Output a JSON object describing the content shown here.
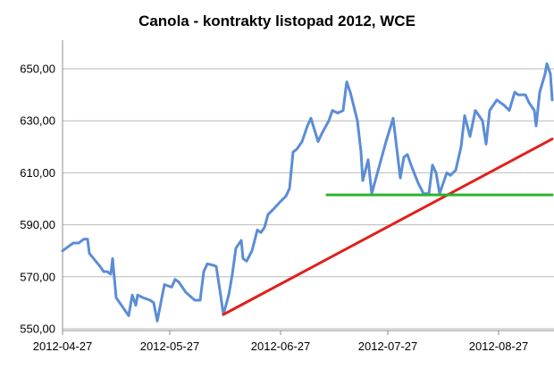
{
  "chart_data": {
    "type": "line",
    "title": "Canola - kontrakty listopad 2012, WCE",
    "xlabel": "",
    "ylabel": "",
    "ylim": [
      550,
      655
    ],
    "yticks": [
      "550,00",
      "570,00",
      "590,00",
      "610,00",
      "630,00",
      "650,00"
    ],
    "ytick_values": [
      550,
      570,
      590,
      610,
      630,
      650
    ],
    "xticks": [
      "2012-04-27",
      "2012-05-27",
      "2012-06-27",
      "2012-07-27",
      "2012-08-27"
    ],
    "xtick_days": [
      0,
      30,
      61,
      91,
      122
    ],
    "grid": "horizontal",
    "series": [
      {
        "color": "#5b8dd6",
        "points": [
          [
            0,
            580
          ],
          [
            1.5,
            581.5
          ],
          [
            3,
            583
          ],
          [
            4.5,
            583
          ],
          [
            6,
            584.5
          ],
          [
            7,
            584.5
          ],
          [
            7.5,
            579
          ],
          [
            9,
            576.5
          ],
          [
            10.5,
            574
          ],
          [
            11.5,
            572
          ],
          [
            12.5,
            572
          ],
          [
            13.5,
            571
          ],
          [
            14,
            577
          ],
          [
            15,
            562
          ],
          [
            16.5,
            559
          ],
          [
            18.5,
            555
          ],
          [
            19.5,
            563
          ],
          [
            20.5,
            559
          ],
          [
            21,
            563
          ],
          [
            22.5,
            562
          ],
          [
            24.5,
            561
          ],
          [
            25.5,
            560
          ],
          [
            26.5,
            553
          ],
          [
            28.5,
            567
          ],
          [
            30.5,
            566
          ],
          [
            31.5,
            569
          ],
          [
            32.5,
            568
          ],
          [
            33.5,
            566
          ],
          [
            34.5,
            564
          ],
          [
            37,
            561
          ],
          [
            38.5,
            561
          ],
          [
            39.5,
            572
          ],
          [
            40.5,
            575
          ],
          [
            42,
            574.5
          ],
          [
            43,
            574
          ],
          [
            44,
            565
          ],
          [
            45,
            555.5
          ],
          [
            46.5,
            563
          ],
          [
            47.5,
            571
          ],
          [
            48.5,
            581
          ],
          [
            50,
            584
          ],
          [
            50.5,
            577
          ],
          [
            51.5,
            576
          ],
          [
            53,
            580
          ],
          [
            54.5,
            588
          ],
          [
            55.5,
            587
          ],
          [
            56.5,
            589
          ],
          [
            57.5,
            594
          ],
          [
            59,
            596
          ],
          [
            61,
            599
          ],
          [
            62.5,
            601
          ],
          [
            63.5,
            604
          ],
          [
            64.5,
            618
          ],
          [
            65.5,
            619
          ],
          [
            67,
            622
          ],
          [
            68.5,
            628
          ],
          [
            69.5,
            631
          ],
          [
            71.5,
            622
          ],
          [
            72.5,
            625
          ],
          [
            74.5,
            630
          ],
          [
            75.5,
            634
          ],
          [
            77,
            633
          ],
          [
            78.5,
            634
          ],
          [
            79.5,
            645
          ],
          [
            80.5,
            641
          ],
          [
            82.5,
            630
          ],
          [
            83.5,
            618
          ],
          [
            84,
            607
          ],
          [
            85.5,
            615
          ],
          [
            86.5,
            602
          ],
          [
            88.5,
            612
          ],
          [
            90.5,
            622
          ],
          [
            92.5,
            631
          ],
          [
            94.5,
            608
          ],
          [
            95.5,
            616
          ],
          [
            96.5,
            617
          ],
          [
            97.5,
            613
          ],
          [
            99.5,
            606
          ],
          [
            101,
            602
          ],
          [
            102.5,
            602
          ],
          [
            103.5,
            613
          ],
          [
            104.5,
            610
          ],
          [
            105.5,
            602
          ],
          [
            107.5,
            610
          ],
          [
            108.5,
            609
          ],
          [
            110,
            611
          ],
          [
            111.5,
            620
          ],
          [
            112.5,
            632
          ],
          [
            114,
            624
          ],
          [
            115.5,
            634
          ],
          [
            116.5,
            632
          ],
          [
            117.5,
            630
          ],
          [
            118.5,
            621
          ],
          [
            119.5,
            634
          ],
          [
            121.5,
            638
          ],
          [
            123.5,
            636
          ],
          [
            125,
            634
          ],
          [
            126.5,
            641
          ],
          [
            127.5,
            640
          ],
          [
            129.5,
            640
          ],
          [
            130.5,
            637
          ],
          [
            132,
            634
          ],
          [
            132.5,
            628
          ],
          [
            133.5,
            641
          ],
          [
            135,
            648
          ],
          [
            135.5,
            652
          ],
          [
            136.5,
            648
          ],
          [
            137,
            638
          ]
        ]
      },
      {
        "color": "#e0201c",
        "points": [
          [
            45,
            555.5
          ],
          [
            137,
            623
          ]
        ]
      },
      {
        "color": "#2db32d",
        "points": [
          [
            74,
            601.5
          ],
          [
            137,
            601.5
          ]
        ]
      }
    ]
  }
}
